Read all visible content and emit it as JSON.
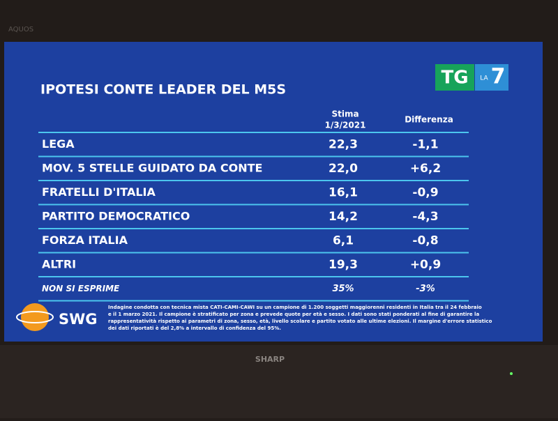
{
  "tv": {
    "brand_top": "AQUOS",
    "brand_bottom": "SHARP"
  },
  "logo": {
    "tg": "TG",
    "la": "LA",
    "seven": "7"
  },
  "title": "IPOTESI CONTE LEADER DEL M5S",
  "table": {
    "headers": {
      "stima": [
        "Stima",
        "1/3/2021"
      ],
      "differenza": "Differenza"
    },
    "rows": [
      {
        "label": "LEGA",
        "stima": "22,3",
        "differenza": "-1,1"
      },
      {
        "label": "MOV. 5 STELLE GUIDATO DA CONTE",
        "stima": "22,0",
        "differenza": "+6,2"
      },
      {
        "label": "FRATELLI D'ITALIA",
        "stima": "16,1",
        "differenza": "-0,9"
      },
      {
        "label": "PARTITO DEMOCRATICO",
        "stima": "14,2",
        "differenza": "-4,3"
      },
      {
        "label": "FORZA ITALIA",
        "stima": "6,1",
        "differenza": "-0,8"
      },
      {
        "label": "ALTRI",
        "stima": "19,3",
        "differenza": "+0,9"
      },
      {
        "label": "NON SI ESPRIME",
        "stima": "35%",
        "differenza": "-3%"
      }
    ]
  },
  "footer": {
    "source": "SWG",
    "note": [
      "Indagine condotta con tecnica mista CATI-CAMI-CAWI su un campione di 1.200 soggetti maggiorenni residenti in Italia tra il 24 febbraio",
      "e il 1 marzo 2021. Il campione è stratificato per zona e prevede quote per età e sesso. I dati sono stati ponderati al fine di garantire la",
      "rappresentatività rispetto ai parametri di zona, sesso, età, livello scolare e partito votato alle ultime elezioni. Il margine d'errore statistico",
      "dei dati riportati è del 2,8% a intervallo di confidenza del 95%."
    ]
  }
}
